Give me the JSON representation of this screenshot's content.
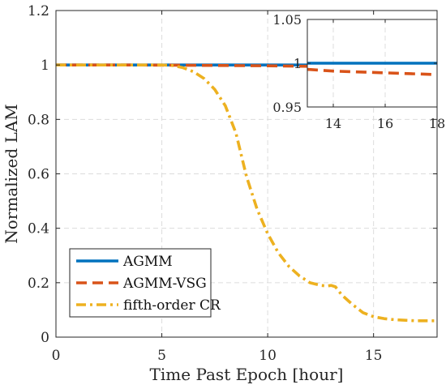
{
  "chart_data": [
    {
      "type": "line",
      "title": "",
      "xlabel": "Time Past Epoch [hour]",
      "ylabel": "Normalized LAM",
      "xlim": [
        0,
        18
      ],
      "ylim": [
        0,
        1.2
      ],
      "xticks": [
        0,
        5,
        10,
        15
      ],
      "yticks": [
        0,
        0.2,
        0.4,
        0.6,
        0.8,
        1,
        1.2
      ],
      "xtick_labels": [
        "0",
        "5",
        "10",
        "15"
      ],
      "ytick_labels": [
        "0",
        "0.2",
        "0.4",
        "0.6",
        "0.8",
        "1",
        "1.2"
      ],
      "grid": true,
      "legend_position": "bottom-left",
      "series": [
        {
          "name": "AGMM",
          "color": "#0072BD",
          "dash": "solid",
          "x": [
            0,
            18
          ],
          "y": [
            1,
            1
          ]
        },
        {
          "name": "AGMM-VSG",
          "color": "#D95319",
          "dash": "dashed",
          "x": [
            0,
            3,
            6,
            8,
            10,
            12,
            13,
            14,
            16,
            18
          ],
          "y": [
            1,
            1,
            0.999,
            0.998,
            0.997,
            0.995,
            0.993,
            0.991,
            0.989,
            0.987
          ]
        },
        {
          "name": "fifth-order CR",
          "color": "#EDB120",
          "dash": "dashdot",
          "x": [
            0,
            5,
            5.5,
            6,
            6.5,
            7,
            7.5,
            8,
            8.5,
            9,
            9.5,
            10,
            10.5,
            11,
            11.5,
            12,
            12.5,
            12.8,
            13,
            13.2,
            13.5,
            14,
            14.5,
            15,
            15.5,
            16,
            17,
            18
          ],
          "y": [
            1,
            1,
            0.998,
            0.99,
            0.975,
            0.95,
            0.91,
            0.85,
            0.75,
            0.59,
            0.47,
            0.38,
            0.31,
            0.26,
            0.225,
            0.2,
            0.19,
            0.188,
            0.19,
            0.185,
            0.155,
            0.12,
            0.09,
            0.075,
            0.068,
            0.064,
            0.06,
            0.06
          ]
        }
      ]
    },
    {
      "type": "line",
      "title": "",
      "xlabel": "",
      "ylabel": "",
      "xlim": [
        13,
        18
      ],
      "ylim": [
        0.95,
        1.05
      ],
      "xticks": [
        14,
        16,
        18
      ],
      "yticks": [
        0.95,
        1,
        1.05
      ],
      "xtick_labels": [
        "14",
        "16",
        "18"
      ],
      "ytick_labels": [
        "0.95",
        "1",
        "1.05"
      ],
      "grid": true,
      "placement": "top-right inset",
      "series": [
        {
          "name": "AGMM",
          "color": "#0072BD",
          "dash": "solid",
          "x": [
            13,
            18
          ],
          "y": [
            1,
            1
          ]
        },
        {
          "name": "AGMM-VSG",
          "color": "#D95319",
          "dash": "dashed",
          "x": [
            13,
            14,
            15,
            16,
            17,
            18
          ],
          "y": [
            0.993,
            0.991,
            0.99,
            0.989,
            0.988,
            0.987
          ]
        }
      ]
    }
  ]
}
